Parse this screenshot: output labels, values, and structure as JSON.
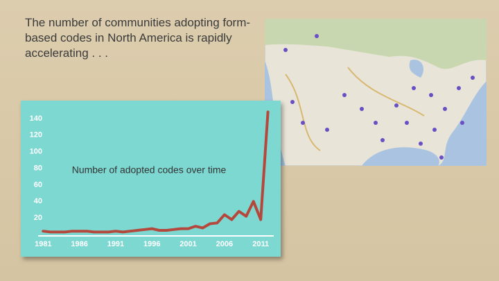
{
  "slide": {
    "heading": "The number of communities adopting form-based codes in North America is rapidly accelerating . . ."
  },
  "chart_data": {
    "type": "line",
    "annotation": "Number of adopted codes over time",
    "x": [
      1981,
      1982,
      1983,
      1984,
      1985,
      1986,
      1987,
      1988,
      1989,
      1990,
      1991,
      1992,
      1993,
      1994,
      1995,
      1996,
      1997,
      1998,
      1999,
      2000,
      2001,
      2002,
      2003,
      2004,
      2005,
      2006,
      2007,
      2008,
      2009,
      2010,
      2011,
      2012
    ],
    "values": [
      4,
      3,
      3,
      3,
      4,
      4,
      4,
      3,
      3,
      3,
      4,
      3,
      4,
      5,
      6,
      7,
      5,
      5,
      6,
      7,
      7,
      10,
      8,
      13,
      14,
      24,
      18,
      28,
      22,
      40,
      18,
      148
    ],
    "color": "#b5483c",
    "xlim": [
      1980.3,
      2012.8
    ],
    "ylim": [
      0,
      150
    ],
    "xticks": [
      1981,
      1986,
      1991,
      1996,
      2001,
      2006,
      2011
    ],
    "yticks": [
      20,
      40,
      60,
      80,
      100,
      120,
      140
    ]
  }
}
